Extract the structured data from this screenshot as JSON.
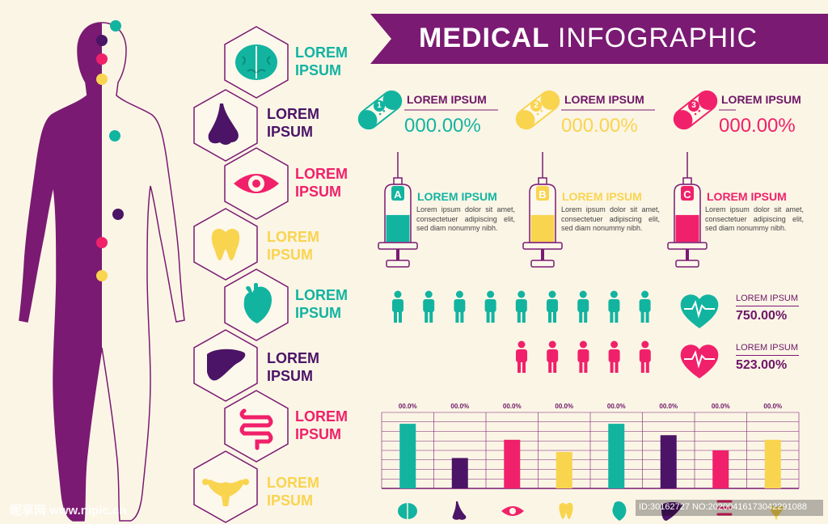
{
  "header": {
    "title_bold": "MEDICAL",
    "title_light": "INFOGRAPHIC"
  },
  "colors": {
    "purple": "#7a1a72",
    "teal": "#12b4a0",
    "pink": "#f0216a",
    "yellow": "#f9d44f",
    "dark_purple": "#4b1466"
  },
  "organs": [
    {
      "label": "LOREM IPSUM",
      "icon": "brain-icon",
      "color": "#12b4a0"
    },
    {
      "label": "LOREM IPSUM",
      "icon": "nose-icon",
      "color": "#4b1466"
    },
    {
      "label": "LOREM IPSUM",
      "icon": "eye-icon",
      "color": "#f0216a"
    },
    {
      "label": "LOREM IPSUM",
      "icon": "tooth-icon",
      "color": "#f9d44f"
    },
    {
      "label": "LOREM IPSUM",
      "icon": "heart-organ-icon",
      "color": "#12b4a0"
    },
    {
      "label": "LOREM IPSUM",
      "icon": "liver-icon",
      "color": "#4b1466"
    },
    {
      "label": "LOREM IPSUM",
      "icon": "intestine-icon",
      "color": "#f0216a"
    },
    {
      "label": "LOREM IPSUM",
      "icon": "uterus-icon",
      "color": "#f9d44f"
    }
  ],
  "stats": [
    {
      "number": "1",
      "label": "LOREM IPSUM",
      "value": "000.00%",
      "color": "#12b4a0"
    },
    {
      "number": "2",
      "label": "LOREM IPSUM",
      "value": "000.00%",
      "color": "#f9d44f"
    },
    {
      "number": "3",
      "label": "LOREM IPSUM",
      "value": "000.00%",
      "color": "#f0216a"
    }
  ],
  "syringes": [
    {
      "letter": "A",
      "title": "LOREM IPSUM",
      "color": "#12b4a0",
      "fill": 0.55,
      "text": "Lorem ipsum dolor sit amet, consectetuer adipiscing elit, sed diam nonummy nibh."
    },
    {
      "letter": "B",
      "title": "LOREM IPSUM",
      "color": "#f9d44f",
      "fill": 0.55,
      "text": "Lorem ipsum dolor sit amet, consectetuer adipiscing elit, sed diam nonummy nibh."
    },
    {
      "letter": "C",
      "title": "LOREM IPSUM",
      "color": "#f0216a",
      "fill": 0.55,
      "text": "Lorem ipsum dolor sit amet, consectetuer adipiscing elit, sed diam nonummy nibh."
    }
  ],
  "people": [
    {
      "count": 9,
      "color": "#12b4a0",
      "label": "LOREM IPSUM",
      "value": "750.00%"
    },
    {
      "count": 5,
      "color": "#f0216a",
      "label": "LOREM IPSUM",
      "value": "523.00%"
    }
  ],
  "chart_data": {
    "type": "bar",
    "categories": [
      "brain",
      "nose",
      "eye",
      "tooth",
      "heart",
      "liver",
      "intestine",
      "uterus"
    ],
    "values": [
      85,
      40,
      64,
      48,
      85,
      70,
      50,
      64
    ],
    "value_labels": [
      "00.0%",
      "00.0%",
      "00.0%",
      "00.0%",
      "00.0%",
      "00.0%",
      "00.0%",
      "00.0%"
    ],
    "colors": [
      "#12b4a0",
      "#4b1466",
      "#f0216a",
      "#f9d44f",
      "#12b4a0",
      "#4b1466",
      "#f0216a",
      "#f9d44f"
    ],
    "ylim": [
      0,
      100
    ],
    "grid": true
  },
  "watermark": {
    "left": "昵享网 www.nipic.cn",
    "right": "ID:30162727 NO:20200416173042291088"
  }
}
